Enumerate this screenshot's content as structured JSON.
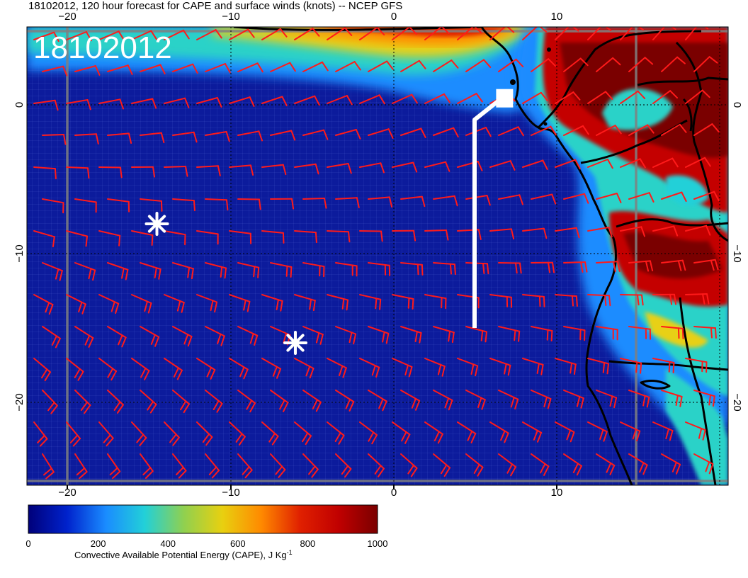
{
  "title": "18102012, 120 hour forecast for CAPE and surface winds (knots) -- NCEP GFS",
  "date_stamp": "18102012",
  "axes": {
    "lon_ticks": [
      "−20",
      "−10",
      "0",
      "10"
    ],
    "lat_ticks": [
      "0",
      "−10",
      "−20"
    ],
    "lon_range": [
      -22.5,
      20.5
    ],
    "lat_range": [
      -25.5,
      5.2
    ]
  },
  "colorbar": {
    "label": "Convective Available Potential Energy (CAPE), J Kg",
    "label_superscript": "-1",
    "tick_labels": [
      "0",
      "200",
      "400",
      "600",
      "800",
      "1000"
    ],
    "range": [
      0,
      1000
    ],
    "colors": [
      "#00007a",
      "#0022cc",
      "#1a8cff",
      "#22d0d8",
      "#8fd050",
      "#e8d010",
      "#ff8a00",
      "#e02000",
      "#c00000",
      "#7a0000"
    ]
  },
  "markers": {
    "asterisks": [
      {
        "lon": -14.5,
        "lat": -8.0
      },
      {
        "lon": -6.0,
        "lat": -16.0
      }
    ],
    "track": [
      {
        "lon": 5.0,
        "lat": -15.0
      },
      {
        "lon": 5.0,
        "lat": -1.0
      },
      {
        "lon": 6.5,
        "lat": 0.3
      }
    ],
    "track_end_box": {
      "lon": 6.8,
      "lat": 0.3
    }
  },
  "colors": {
    "wind_barb": "#ff1a1a",
    "coastline": "#000000",
    "graticule": "#808080",
    "marker": "#ffffff"
  }
}
